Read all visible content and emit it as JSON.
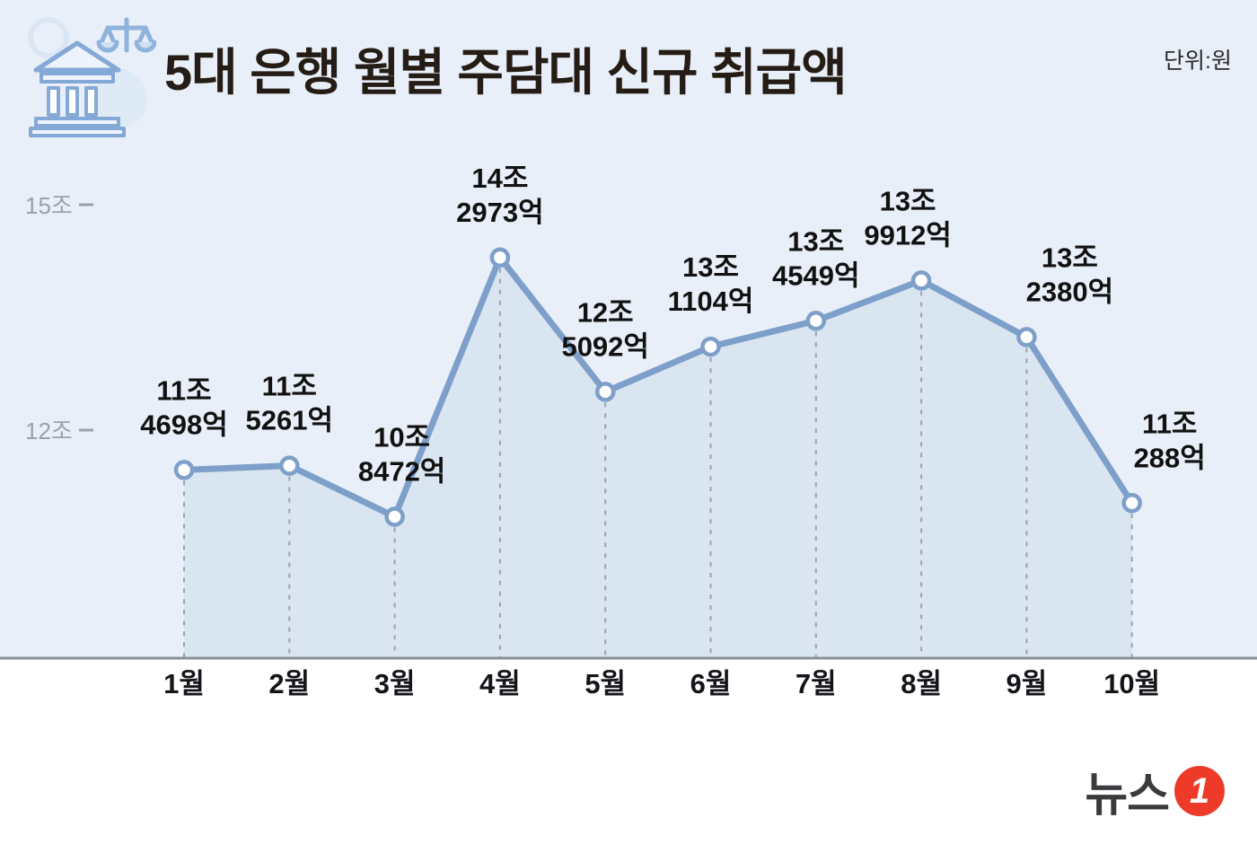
{
  "header": {
    "title": "5대 은행 월별 주담대 신규 취급액",
    "unit": "단위:원",
    "icon": "bank-with-scales-icon"
  },
  "chart_data": {
    "type": "line",
    "title": "5대 은행 월별 주담대 신규 취급액",
    "unit": "원 (조 단위)",
    "categories": [
      "1월",
      "2월",
      "3월",
      "4월",
      "5월",
      "6월",
      "7월",
      "8월",
      "9월",
      "10월"
    ],
    "values_jo": [
      11.4698,
      11.5261,
      10.8472,
      14.2973,
      12.5092,
      13.1104,
      13.4549,
      13.9912,
      13.238,
      11.0288
    ],
    "point_labels": [
      [
        "11조",
        "4698억"
      ],
      [
        "11조",
        "5261억"
      ],
      [
        "10조",
        "8472억"
      ],
      [
        "14조",
        "2973억"
      ],
      [
        "12조",
        "5092억"
      ],
      [
        "13조",
        "1104억"
      ],
      [
        "13조",
        "4549억"
      ],
      [
        "13조",
        "9912억"
      ],
      [
        "13조",
        "2380억"
      ],
      [
        "11조",
        "288억"
      ]
    ],
    "label_dx": [
      0,
      0,
      8,
      0,
      0,
      0,
      0,
      -15,
      48,
      42
    ],
    "y_ticks": [
      {
        "label": "15조",
        "value": 15
      },
      {
        "label": "12조",
        "value": 12
      }
    ],
    "ylim": [
      9.7,
      15.6
    ],
    "grid": "dashed-vertical-droplines",
    "legend": "none"
  },
  "colors": {
    "background": "#e9eff8",
    "line": "#7d9fc9",
    "area_fill": "rgba(125,159,201,0.13)",
    "marker_fill": "#ffffff",
    "dashed_line": "#9aa2ad",
    "axis_line": "#8a9099",
    "tick_text": "#99a1ac",
    "label_text": "#111111",
    "month_text": "#14141a",
    "title_text": "#241c15",
    "logo_red": "#ee3a29"
  },
  "footer": {
    "logo_text": "뉴스",
    "logo_number": "1"
  }
}
